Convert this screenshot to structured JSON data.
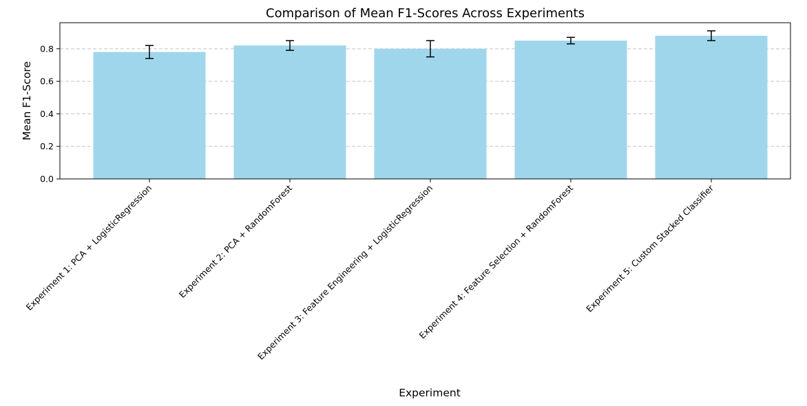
{
  "chart_data": {
    "type": "bar",
    "title": "Comparison of Mean F1-Scores Across Experiments",
    "xlabel": "Experiment",
    "ylabel": "Mean F1-Score",
    "ylim": [
      0,
      0.96
    ],
    "yticks": [
      0.0,
      0.2,
      0.4,
      0.6,
      0.8
    ],
    "ytick_labels": [
      "0.0",
      "0.2",
      "0.4",
      "0.6",
      "0.8"
    ],
    "grid": "y-axis dashed",
    "categories": [
      "Experiment 1: PCA + LogisticRegression",
      "Experiment 2: PCA + RandomForest",
      "Experiment 3: Feature Engineering + LogisticRegression",
      "Experiment 4: Feature Selection + RandomForest",
      "Experiment 5: Custom Stacked Classifier"
    ],
    "values": [
      0.78,
      0.82,
      0.8,
      0.85,
      0.88
    ],
    "errors": [
      0.04,
      0.03,
      0.05,
      0.02,
      0.03
    ],
    "bar_color": "#9fd6ec",
    "error_color": "#000000",
    "grid_color": "#c4c4c4"
  }
}
